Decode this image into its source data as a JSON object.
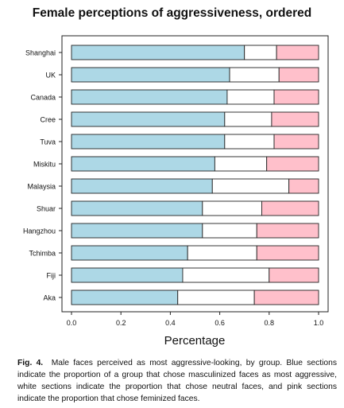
{
  "title": "Female perceptions of aggressiveness, ordered",
  "caption": {
    "label": "Fig. 4.",
    "text": "Male faces perceived as most aggressive-looking, by group. Blue sections indicate the proportion of a group that chose masculinized faces as most aggressive, white sections indicate the proportion that chose neutral faces, and pink sections indicate the proportion that chose feminized faces."
  },
  "colors": {
    "masculinized": "#add8e6",
    "neutral": "#ffffff",
    "feminized": "#ffc0cb",
    "stroke": "#222222"
  },
  "chart_data": {
    "type": "bar",
    "orientation": "horizontal",
    "stacked": true,
    "title": "Female perceptions of aggressiveness, ordered",
    "xlabel": "Percentage",
    "ylabel": "",
    "xlim": [
      0,
      1
    ],
    "xticks": [
      "0.0",
      "0.2",
      "0.4",
      "0.6",
      "0.8",
      "1.0"
    ],
    "categories": [
      "Shanghai",
      "UK",
      "Canada",
      "Cree",
      "Tuva",
      "Miskitu",
      "Malaysia",
      "Shuar",
      "Hangzhou",
      "Tchimba",
      "Fiji",
      "Aka"
    ],
    "series": [
      {
        "values": [
          0.7,
          0.64,
          0.63,
          0.62,
          0.62,
          0.58,
          0.57,
          0.53,
          0.53,
          0.47,
          0.45,
          0.43
        ]
      },
      {
        "values": [
          0.13,
          0.2,
          0.19,
          0.19,
          0.2,
          0.21,
          0.31,
          0.24,
          0.22,
          0.28,
          0.35,
          0.31
        ]
      },
      {
        "values": [
          0.17,
          0.16,
          0.18,
          0.19,
          0.18,
          0.21,
          0.12,
          0.23,
          0.25,
          0.25,
          0.2,
          0.26
        ]
      }
    ],
    "grid": false,
    "legend": "none"
  }
}
